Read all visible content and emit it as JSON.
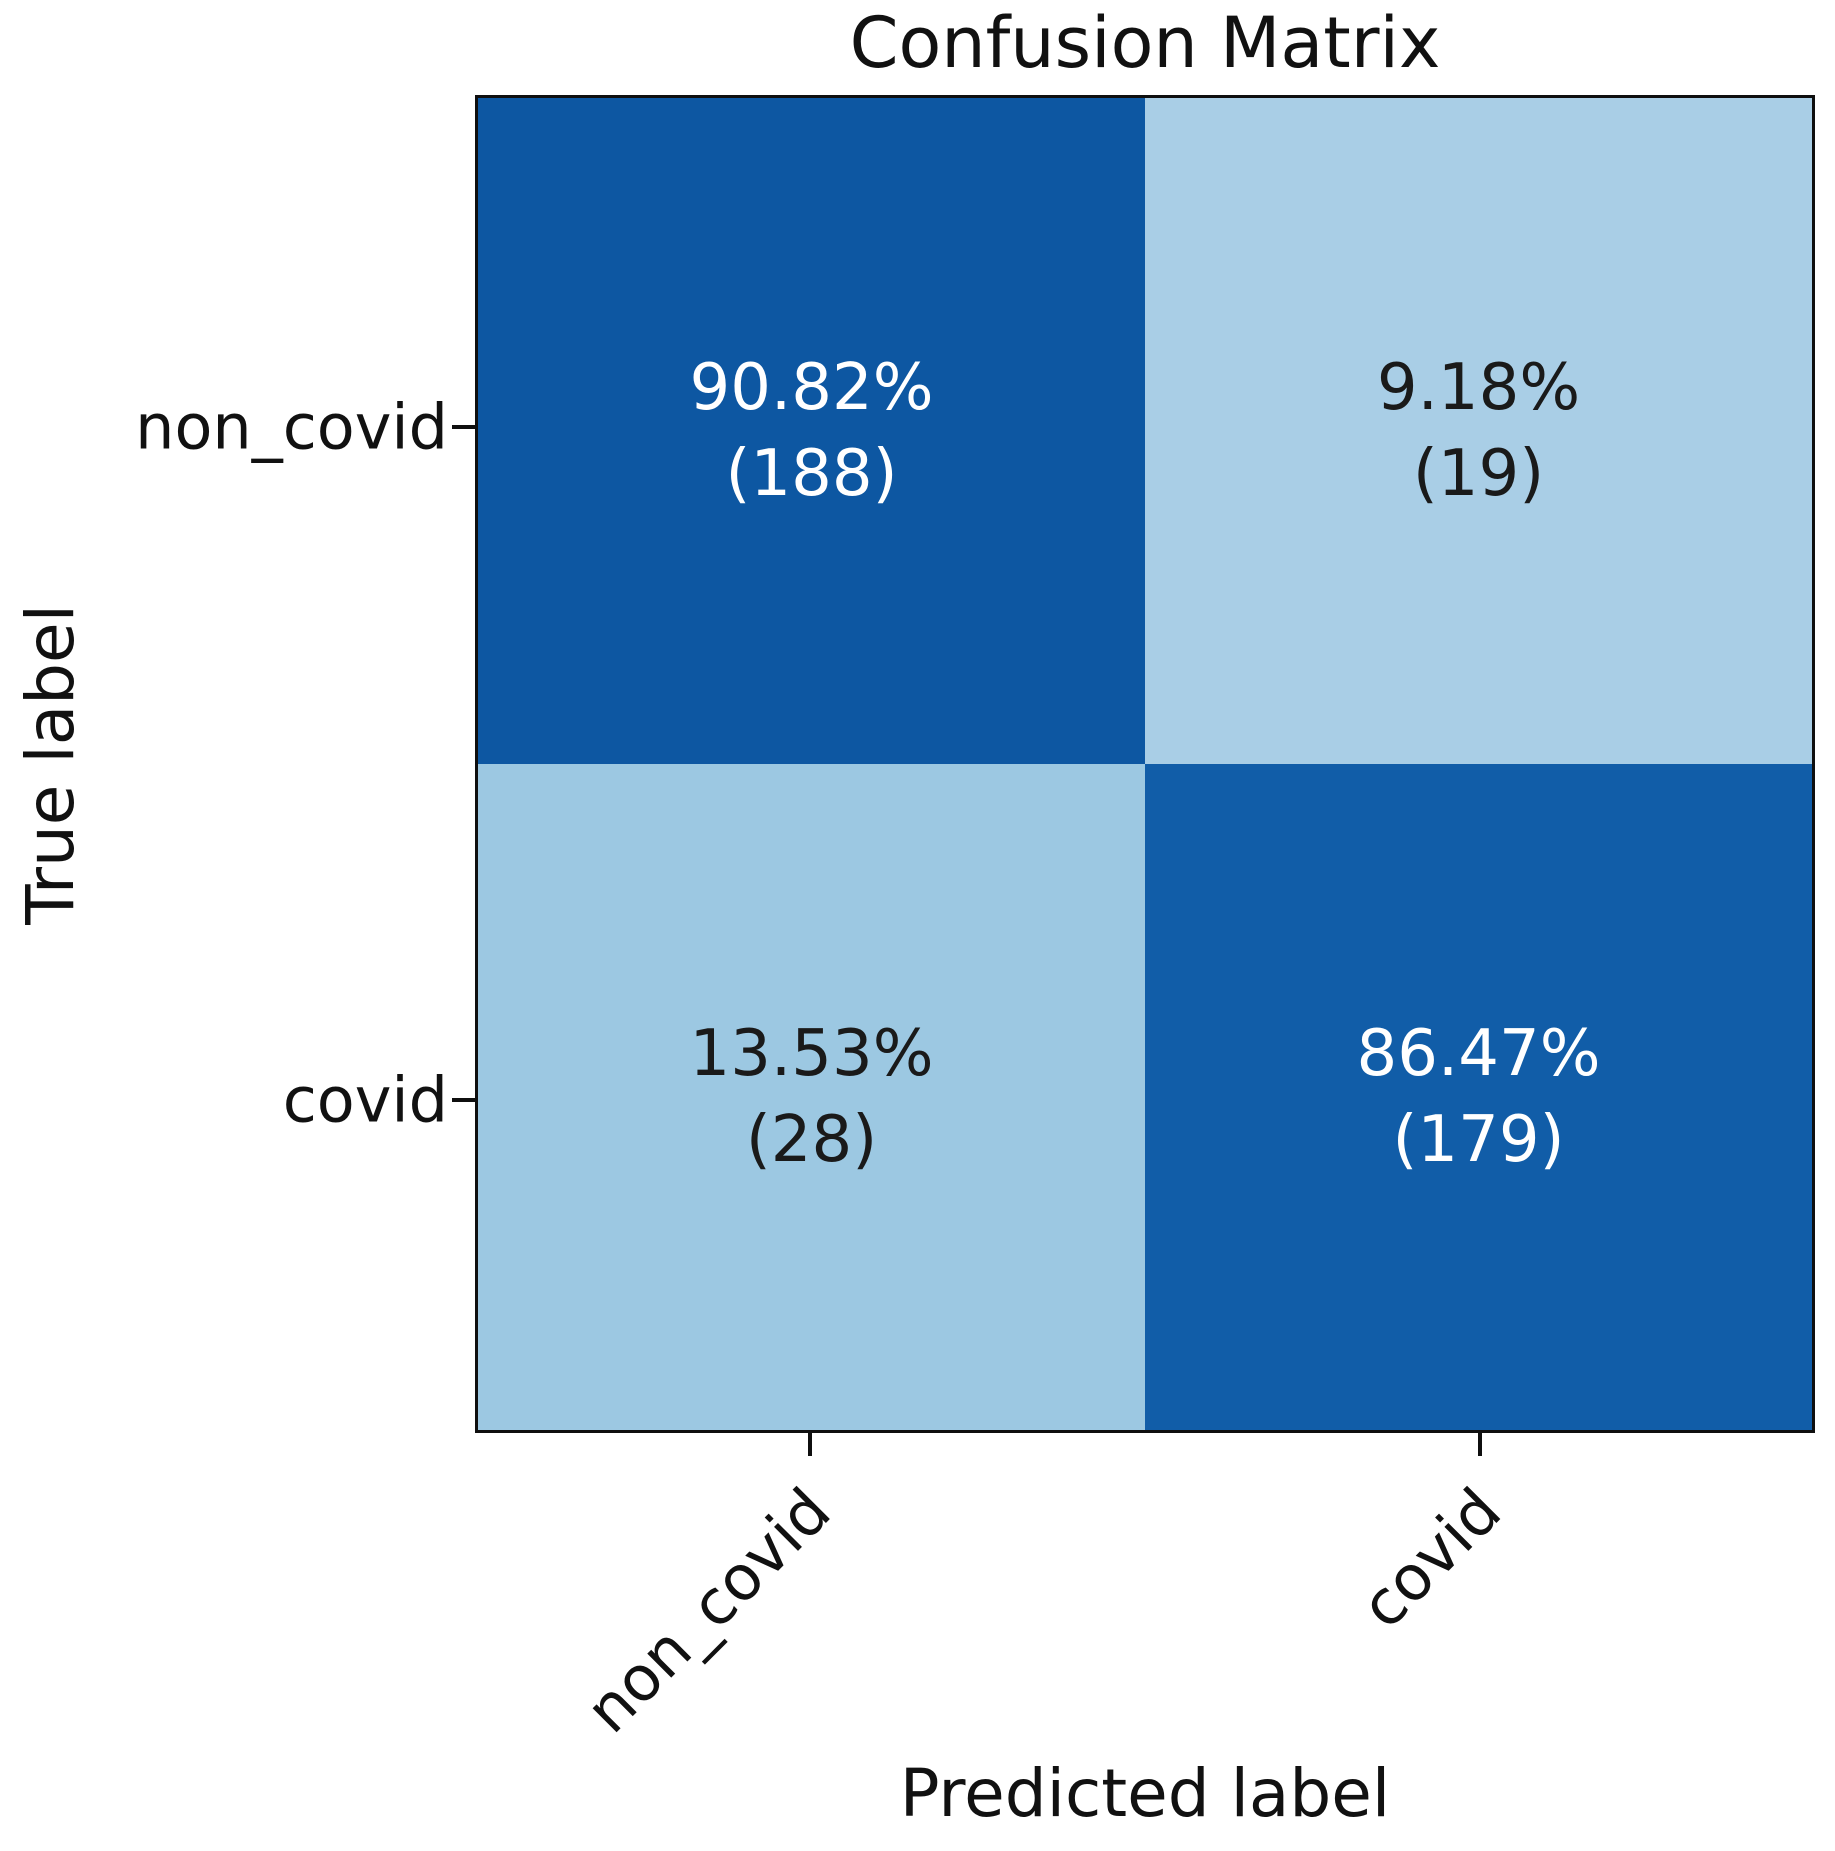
{
  "chart_data": {
    "type": "heatmap",
    "title": "Confusion Matrix",
    "xlabel": "Predicted label",
    "ylabel": "True label",
    "x_tick_labels": [
      "non_covid",
      "covid"
    ],
    "y_tick_labels": [
      "non_covid",
      "covid"
    ],
    "colormap": "Blues",
    "normalization": "row (percent of true-label row)",
    "grid": false,
    "cells": [
      {
        "true_label": "non_covid",
        "predicted_label": "non_covid",
        "percent": 90.82,
        "count": 188,
        "percent_label": "90.82%",
        "count_label": "(188)",
        "bg": "#0d57a2",
        "fg": "#ffffff"
      },
      {
        "true_label": "non_covid",
        "predicted_label": "covid",
        "percent": 9.18,
        "count": 19,
        "percent_label": "9.18%",
        "count_label": "(19)",
        "bg": "#a9cee6",
        "fg": "#1a1a1a"
      },
      {
        "true_label": "covid",
        "predicted_label": "non_covid",
        "percent": 13.53,
        "count": 28,
        "percent_label": "13.53%",
        "count_label": "(28)",
        "bg": "#9cc8e2",
        "fg": "#1a1a1a"
      },
      {
        "true_label": "covid",
        "predicted_label": "covid",
        "percent": 86.47,
        "count": 179,
        "percent_label": "86.47%",
        "count_label": "(179)",
        "bg": "#115da8",
        "fg": "#ffffff"
      }
    ],
    "axis_colors": {
      "spine": "#0f0f0f",
      "text": "#111111"
    }
  }
}
